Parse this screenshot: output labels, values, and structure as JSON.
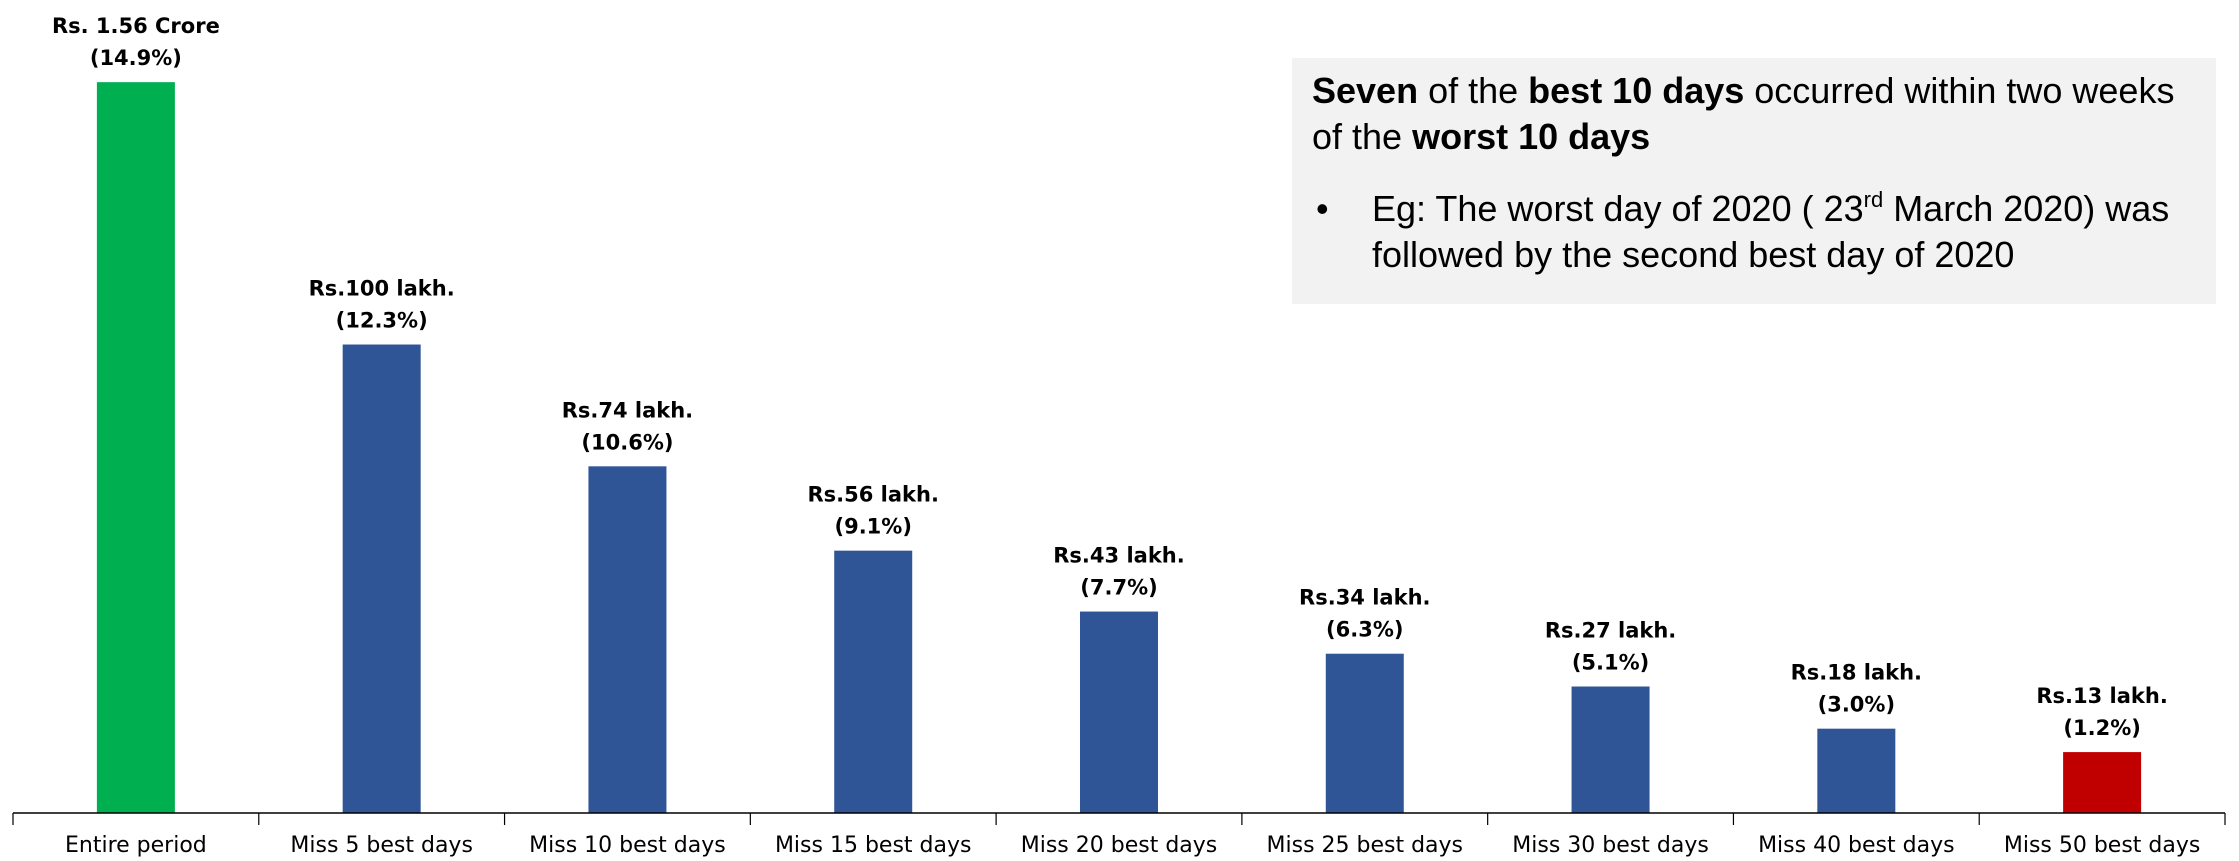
{
  "chart_data": {
    "type": "bar",
    "categories": [
      "Entire period",
      "Miss 5 best days",
      "Miss 10 best days",
      "Miss 15 best days",
      "Miss 20 best days",
      "Miss 25 best days",
      "Miss 30 best days",
      "Miss 40 best days",
      "Miss 50 best days"
    ],
    "values": [
      156,
      100,
      74,
      56,
      43,
      34,
      27,
      18,
      13
    ],
    "value_unit": "lakh",
    "data_labels": [
      {
        "line1": "Rs. 1.56 Crore",
        "line2": "(14.9%)"
      },
      {
        "line1": "Rs.100 lakh.",
        "line2": "(12.3%)"
      },
      {
        "line1": "Rs.74 lakh.",
        "line2": "(10.6%)"
      },
      {
        "line1": "Rs.56 lakh.",
        "line2": "(9.1%)"
      },
      {
        "line1": "Rs.43 lakh.",
        "line2": "(7.7%)"
      },
      {
        "line1": "Rs.34 lakh.",
        "line2": "(6.3%)"
      },
      {
        "line1": "Rs.27 lakh.",
        "line2": "(5.1%)"
      },
      {
        "line1": "Rs.18 lakh.",
        "line2": "(3.0%)"
      },
      {
        "line1": "Rs.13 lakh.",
        "line2": "(1.2%)"
      }
    ],
    "bar_colors": [
      "#00b050",
      "#2f5597",
      "#2f5597",
      "#2f5597",
      "#2f5597",
      "#2f5597",
      "#2f5597",
      "#2f5597",
      "#c00000"
    ],
    "label_colors": [
      "#000000",
      "#000000",
      "#000000",
      "#000000",
      "#000000",
      "#000000",
      "#000000",
      "#000000",
      "#ff0000"
    ],
    "ylim": [
      0,
      165
    ],
    "grid": false,
    "legend": "none"
  },
  "callout": {
    "heading": {
      "seg1_bold": "Seven",
      "seg2": " of the ",
      "seg3_bold": "best 10 days",
      "seg4": " occurred within two weeks of the ",
      "seg5_bold": "worst 10 days"
    },
    "bullet": {
      "marker": "•",
      "text_before": "Eg: The worst day of 2020 ( 23",
      "superscript": "rd",
      "text_after": " March 2020) was followed by the second best day of 2020"
    }
  }
}
